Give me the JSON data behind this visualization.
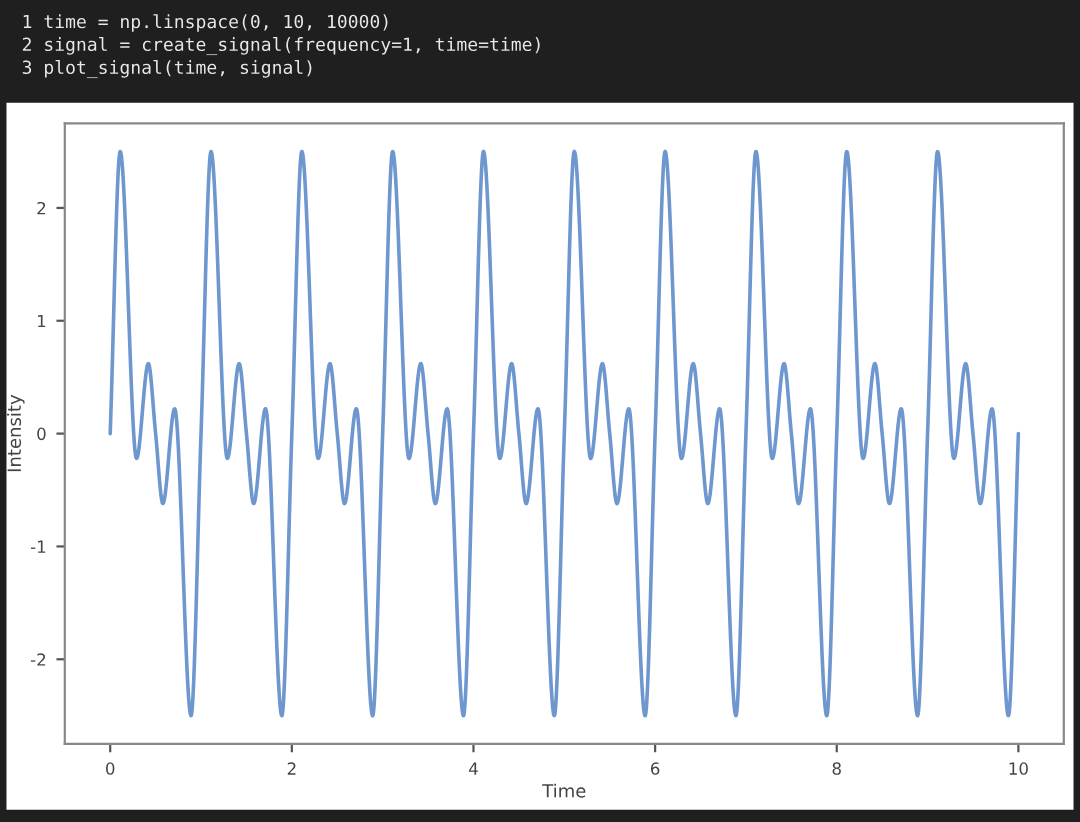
{
  "chart_data": {
    "type": "line",
    "xlabel": "Time",
    "ylabel": "Intensity",
    "annotations": [
      "1 time = np.linspace(0, 10, 10000)",
      "2 signal = create_signal(frequency=1, time=time)",
      "3 plot_signal(time, signal)"
    ],
    "xlim": [
      -0.5,
      10.5
    ],
    "xticks": [
      0,
      2,
      4,
      6,
      8,
      10
    ],
    "ylim": [
      -2.75,
      2.75
    ],
    "yticks": [
      -2,
      -1,
      0,
      1,
      2
    ],
    "grid": false,
    "series": [
      {
        "color": "#6f97cf",
        "line_style": "solid",
        "marker": "none",
        "x": [
          0,
          0.11,
          0.29,
          0.42,
          0.5,
          0.58,
          0.71,
          0.89,
          1,
          1.11,
          1.29,
          1.42,
          1.5,
          1.58,
          1.71,
          1.89,
          2,
          2.11,
          2.29,
          2.42,
          2.5,
          2.58,
          2.71,
          2.89,
          3,
          3.11,
          3.29,
          3.42,
          3.5,
          3.58,
          3.71,
          3.89,
          4,
          4.11,
          4.29,
          4.42,
          4.5,
          4.58,
          4.71,
          4.89,
          5,
          5.11,
          5.29,
          5.42,
          5.5,
          5.58,
          5.71,
          5.89,
          6,
          6.11,
          6.29,
          6.42,
          6.5,
          6.58,
          6.71,
          6.89,
          7,
          7.11,
          7.29,
          7.42,
          7.5,
          7.58,
          7.71,
          7.89,
          8,
          8.11,
          8.29,
          8.42,
          8.5,
          8.58,
          8.71,
          8.89,
          9,
          9.11,
          9.29,
          9.42,
          9.5,
          9.58,
          9.71,
          9.89,
          10
        ],
        "values": [
          0,
          2.5,
          -0.22,
          0.62,
          0,
          -0.62,
          0.22,
          -2.5,
          0,
          2.5,
          -0.22,
          0.62,
          0,
          -0.62,
          0.22,
          -2.5,
          0,
          2.5,
          -0.22,
          0.62,
          0,
          -0.62,
          0.22,
          -2.5,
          0,
          2.5,
          -0.22,
          0.62,
          0,
          -0.62,
          0.22,
          -2.5,
          0,
          2.5,
          -0.22,
          0.62,
          0,
          -0.62,
          0.22,
          -2.5,
          0,
          2.5,
          -0.22,
          0.62,
          0,
          -0.62,
          0.22,
          -2.5,
          0,
          2.5,
          -0.22,
          0.62,
          0,
          -0.62,
          0.22,
          -2.5,
          0,
          2.5,
          -0.22,
          0.62,
          0,
          -0.62,
          0.22,
          -2.5,
          0,
          2.5,
          -0.22,
          0.62,
          0,
          -0.62,
          0.22,
          -2.5,
          0,
          2.5,
          -0.22,
          0.62,
          0,
          -0.62,
          0.22,
          -2.5,
          0
        ]
      }
    ]
  }
}
